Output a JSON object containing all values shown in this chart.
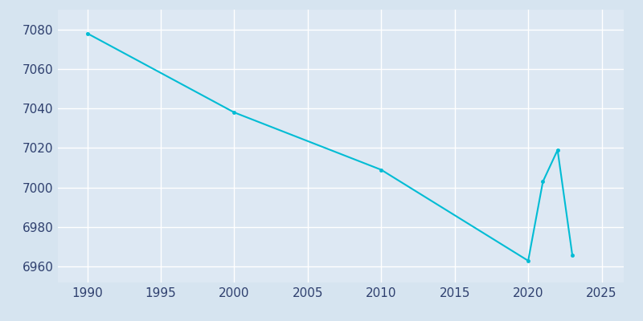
{
  "years": [
    1990,
    2000,
    2010,
    2020,
    2021,
    2022,
    2023
  ],
  "population": [
    7078,
    7038,
    7009,
    6963,
    7003,
    7019,
    6966
  ],
  "line_color": "#00BCD4",
  "marker_color": "#00BCD4",
  "figure_bg_color": "#d6e4f0",
  "axes_bg_color": "#dde8f3",
  "grid_color": "#ffffff",
  "tick_color": "#2e3f6e",
  "xlim": [
    1988,
    2026.5
  ],
  "ylim": [
    6952,
    7090
  ],
  "xticks": [
    1990,
    1995,
    2000,
    2005,
    2010,
    2015,
    2020,
    2025
  ],
  "yticks": [
    6960,
    6980,
    7000,
    7020,
    7040,
    7060,
    7080
  ],
  "tick_labelsize": 11,
  "line_width": 1.5,
  "marker_size": 3,
  "figsize": [
    8.0,
    4.0
  ],
  "dpi": 100
}
